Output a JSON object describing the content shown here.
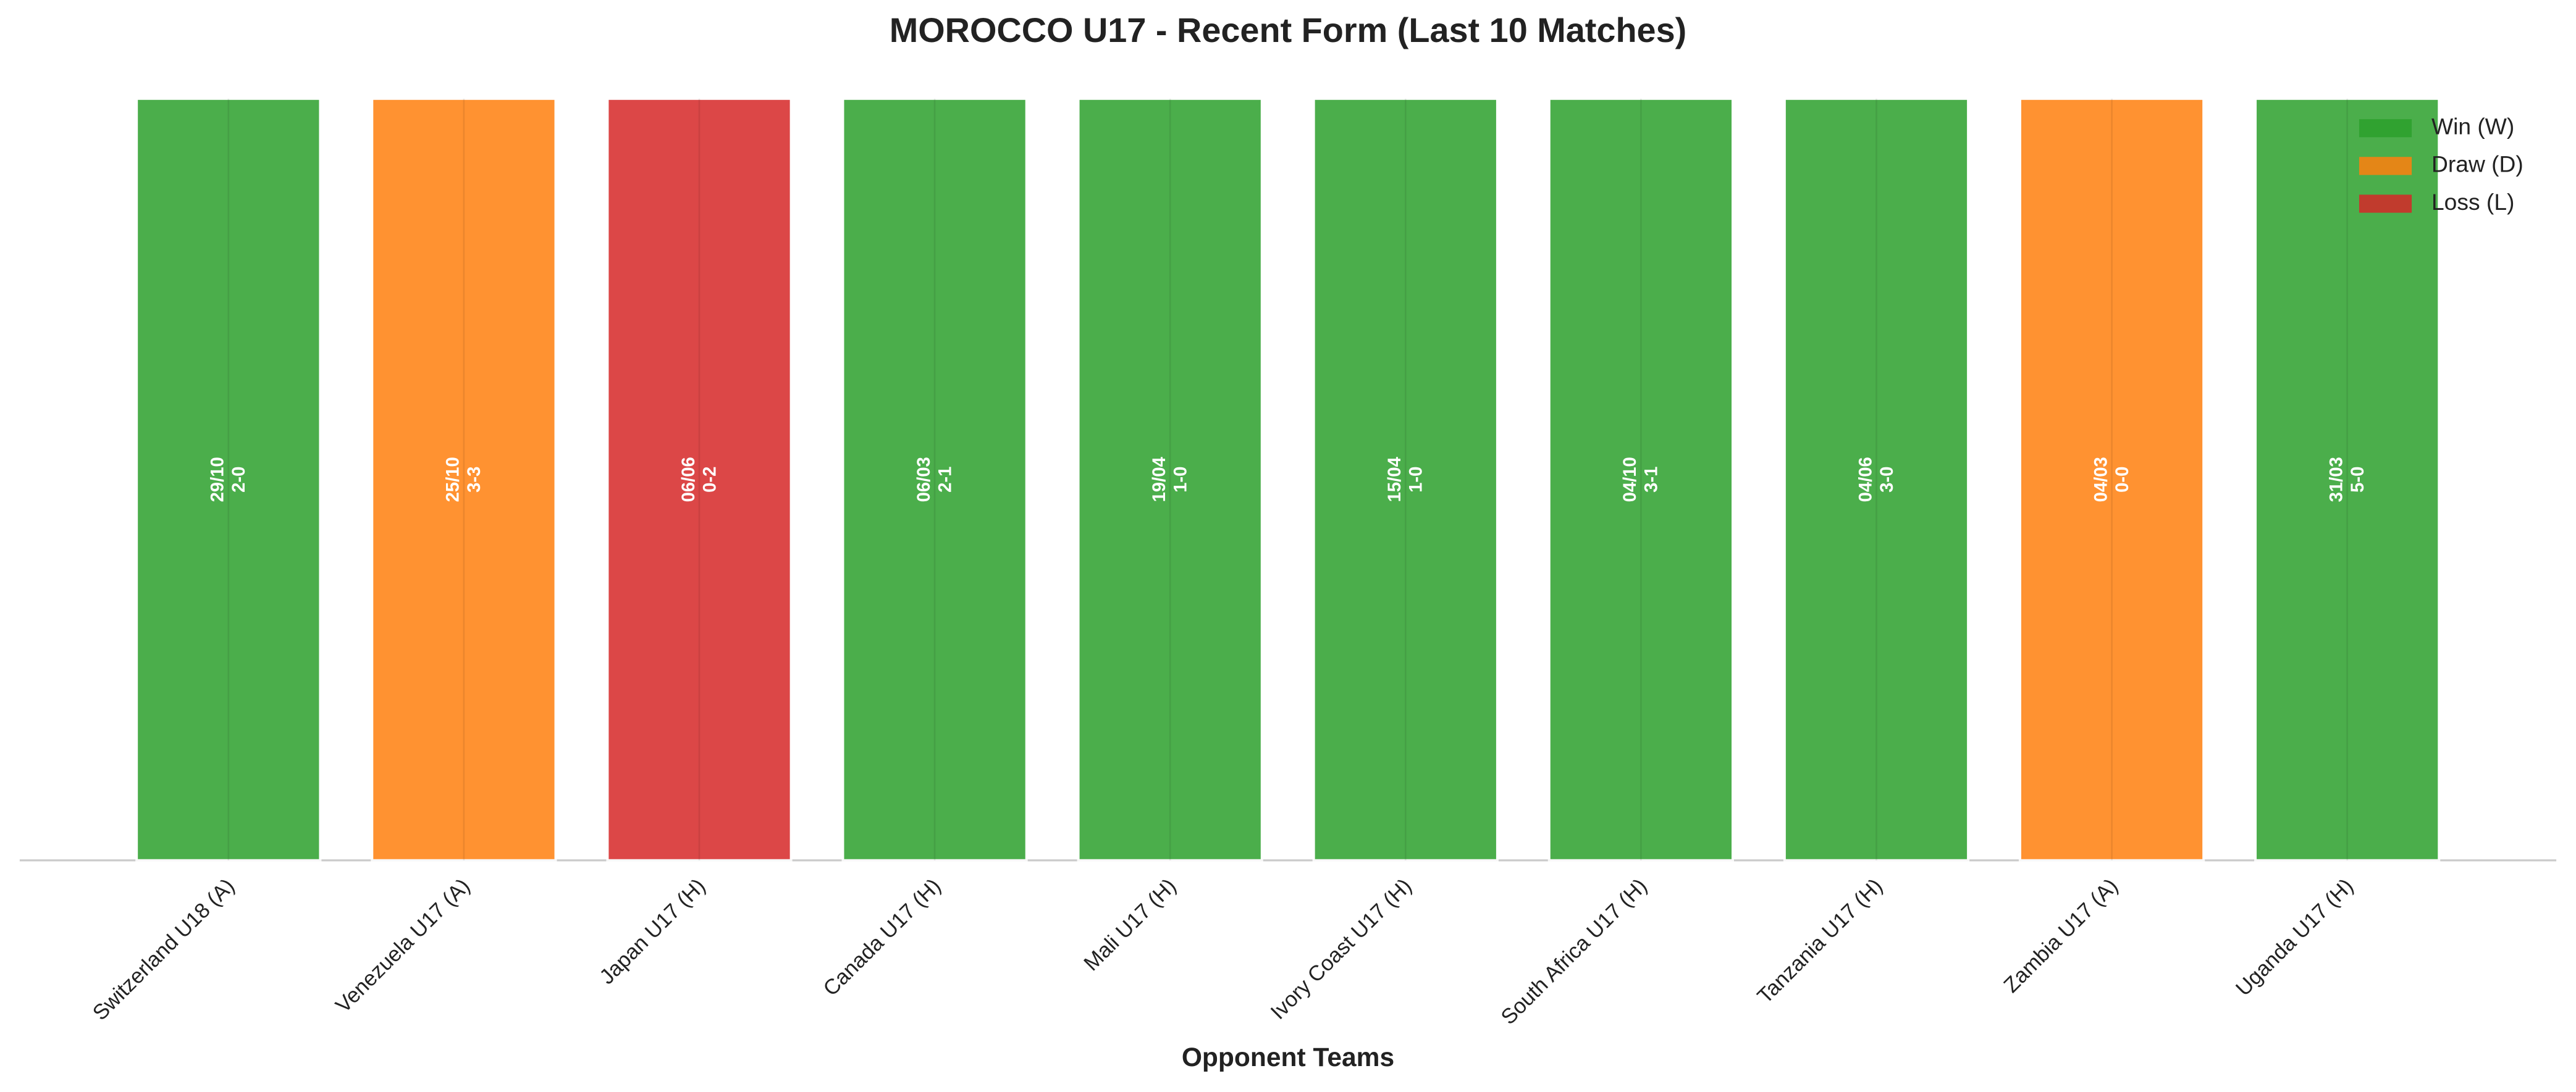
{
  "chart_data": {
    "type": "bar",
    "title": "MOROCCO U17 - Recent Form (Last 10 Matches)",
    "x_label": "Opponent Teams",
    "categories": [
      "Switzerland U18 (A)",
      "Venezuela U17 (A)",
      "Japan U17 (H)",
      "Canada U17 (H)",
      "Mali U17 (H)",
      "Ivory Coast U17 (H)",
      "South Africa U17 (H)",
      "Tanzania U17 (H)",
      "Zambia U17 (A)",
      "Uganda U17 (H)"
    ],
    "values": [
      1,
      1,
      1,
      1,
      1,
      1,
      1,
      1,
      1,
      1
    ],
    "dates": [
      "29/10",
      "25/10",
      "06/06",
      "06/03",
      "19/04",
      "15/04",
      "04/10",
      "04/06",
      "04/03",
      "31/03"
    ],
    "scores": [
      "2-0",
      "3-3",
      "0-2",
      "2-1",
      "1-0",
      "1-0",
      "3-1",
      "3-0",
      "0-0",
      "5-0"
    ],
    "colors": [
      "#2ca02c",
      "#ff7f0e",
      "#d62728",
      "#2ca02c",
      "#2ca02c",
      "#2ca02c",
      "#2ca02c",
      "#2ca02c",
      "#ff7f0e",
      "#2ca02c"
    ],
    "ylim": [
      0,
      1
    ],
    "legend": [
      {
        "name": "Win (W)",
        "color": "#2ca02c"
      },
      {
        "name": "Draw (D)",
        "color": "#ff7f0e"
      },
      {
        "name": "Loss (L)",
        "color": "#d62728"
      }
    ],
    "legend_position": "upper right"
  }
}
